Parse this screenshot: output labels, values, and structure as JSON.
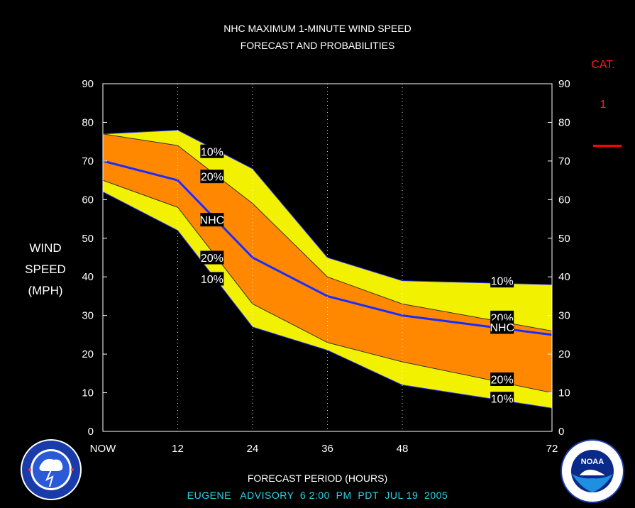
{
  "title_line1": "NHC MAXIMUM 1-MINUTE WIND SPEED",
  "title_line2": "FORECAST AND PROBABILITIES",
  "ylabel_lines": [
    "WIND",
    "SPEED",
    "(MPH)"
  ],
  "xlabel": "FORECAST PERIOD (HOURS)",
  "advisory": "EUGENE   ADVISORY  6 2:00  PM  PDT  JUL 19  2005",
  "category": {
    "header": "CAT.",
    "value": "1",
    "color": "#ff0000"
  },
  "colors": {
    "band_10": "#f2f200",
    "band_20": "#ff8800",
    "nhc_line": "#1a2cff",
    "edge": "#1a2cff"
  },
  "logos": {
    "left": "national-weather-service-logo",
    "right": "noaa-logo"
  },
  "chart_data": {
    "type": "area",
    "x": [
      0,
      12,
      24,
      36,
      48,
      72
    ],
    "x_tick_labels": [
      "NOW",
      "12",
      "24",
      "36",
      "48",
      "72"
    ],
    "xlim": [
      0,
      72
    ],
    "ylim": [
      0,
      90
    ],
    "y_ticks": [
      0,
      10,
      20,
      30,
      40,
      50,
      60,
      70,
      80,
      90
    ],
    "grid": "vertical dotted at each forecast hour",
    "series": [
      {
        "name": "10%",
        "role": "upper",
        "values": [
          77,
          78,
          68,
          45,
          39,
          38
        ]
      },
      {
        "name": "20%",
        "role": "upper",
        "values": [
          77,
          74,
          59,
          40,
          33,
          26
        ]
      },
      {
        "name": "NHC",
        "role": "forecast",
        "values": [
          70,
          65,
          45,
          35,
          30,
          25
        ]
      },
      {
        "name": "20%",
        "role": "lower",
        "values": [
          65,
          58,
          33,
          23,
          18,
          10
        ]
      },
      {
        "name": "10%",
        "role": "lower",
        "values": [
          62,
          52,
          27,
          21,
          12,
          6
        ]
      }
    ],
    "labels": [
      {
        "text": "10%",
        "x": 17.5,
        "y": 72.5
      },
      {
        "text": "20%",
        "x": 17.5,
        "y": 66
      },
      {
        "text": "NHC",
        "x": 17.5,
        "y": 54.8
      },
      {
        "text": "20%",
        "x": 17.5,
        "y": 45
      },
      {
        "text": "10%",
        "x": 17.5,
        "y": 39.5
      },
      {
        "text": "10%",
        "x": 64,
        "y": 39
      },
      {
        "text": "20%",
        "x": 64,
        "y": 29.5
      },
      {
        "text": "NHC",
        "x": 64,
        "y": 27
      },
      {
        "text": "20%",
        "x": 64,
        "y": 13.5
      },
      {
        "text": "10%",
        "x": 64,
        "y": 8.5
      }
    ]
  }
}
